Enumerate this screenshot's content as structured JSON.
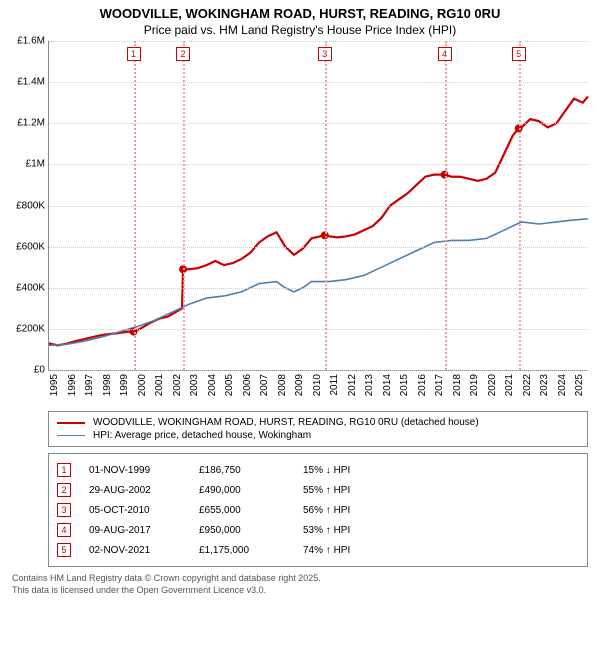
{
  "title": "WOODVILLE, WOKINGHAM ROAD, HURST, READING, RG10 0RU",
  "subtitle": "Price paid vs. HM Land Registry's House Price Index (HPI)",
  "chart": {
    "type": "line",
    "background_color": "#ffffff",
    "grid_color": "#cccccc",
    "x_min": 1995,
    "x_max": 2025.8,
    "y_min": 0,
    "y_max": 1600000,
    "y_ticks": [
      0,
      200000,
      400000,
      600000,
      800000,
      1000000,
      1200000,
      1400000,
      1600000
    ],
    "y_tick_labels": [
      "£0",
      "£200K",
      "£400K",
      "£600K",
      "£800K",
      "£1M",
      "£1.2M",
      "£1.4M",
      "£1.6M"
    ],
    "x_ticks": [
      1995,
      1996,
      1997,
      1998,
      1999,
      2000,
      2001,
      2002,
      2003,
      2004,
      2005,
      2006,
      2007,
      2008,
      2009,
      2010,
      2011,
      2012,
      2013,
      2014,
      2015,
      2016,
      2017,
      2018,
      2019,
      2020,
      2021,
      2022,
      2023,
      2024,
      2025
    ],
    "label_fontsize": 10,
    "series": [
      {
        "name": "property",
        "color": "#cc0000",
        "line_width": 2.2,
        "points": [
          [
            1995.0,
            130000
          ],
          [
            1995.5,
            120000
          ],
          [
            1996.0,
            128000
          ],
          [
            1996.5,
            140000
          ],
          [
            1997.0,
            150000
          ],
          [
            1997.5,
            160000
          ],
          [
            1998.0,
            170000
          ],
          [
            1998.5,
            175000
          ],
          [
            1999.0,
            180000
          ],
          [
            1999.5,
            186000
          ],
          [
            1999.83,
            186750
          ],
          [
            2000.2,
            200000
          ],
          [
            2000.8,
            230000
          ],
          [
            2001.3,
            250000
          ],
          [
            2001.8,
            260000
          ],
          [
            2002.2,
            280000
          ],
          [
            2002.6,
            300000
          ],
          [
            2002.66,
            490000
          ],
          [
            2003.0,
            490000
          ],
          [
            2003.5,
            495000
          ],
          [
            2004.0,
            510000
          ],
          [
            2004.5,
            530000
          ],
          [
            2005.0,
            510000
          ],
          [
            2005.5,
            520000
          ],
          [
            2006.0,
            540000
          ],
          [
            2006.5,
            570000
          ],
          [
            2007.0,
            620000
          ],
          [
            2007.5,
            650000
          ],
          [
            2008.0,
            670000
          ],
          [
            2008.5,
            600000
          ],
          [
            2009.0,
            560000
          ],
          [
            2009.5,
            590000
          ],
          [
            2010.0,
            640000
          ],
          [
            2010.5,
            650000
          ],
          [
            2010.76,
            655000
          ],
          [
            2011.0,
            650000
          ],
          [
            2011.5,
            645000
          ],
          [
            2012.0,
            650000
          ],
          [
            2012.5,
            660000
          ],
          [
            2013.0,
            680000
          ],
          [
            2013.5,
            700000
          ],
          [
            2014.0,
            740000
          ],
          [
            2014.5,
            800000
          ],
          [
            2015.0,
            830000
          ],
          [
            2015.5,
            860000
          ],
          [
            2016.0,
            900000
          ],
          [
            2016.5,
            940000
          ],
          [
            2017.0,
            950000
          ],
          [
            2017.5,
            950000
          ],
          [
            2017.6,
            950000
          ],
          [
            2018.0,
            940000
          ],
          [
            2018.5,
            940000
          ],
          [
            2019.0,
            930000
          ],
          [
            2019.5,
            920000
          ],
          [
            2020.0,
            930000
          ],
          [
            2020.5,
            960000
          ],
          [
            2021.0,
            1050000
          ],
          [
            2021.5,
            1140000
          ],
          [
            2021.84,
            1175000
          ],
          [
            2022.0,
            1180000
          ],
          [
            2022.5,
            1220000
          ],
          [
            2023.0,
            1210000
          ],
          [
            2023.5,
            1180000
          ],
          [
            2024.0,
            1200000
          ],
          [
            2024.5,
            1260000
          ],
          [
            2025.0,
            1320000
          ],
          [
            2025.5,
            1300000
          ],
          [
            2025.8,
            1330000
          ]
        ]
      },
      {
        "name": "hpi",
        "color": "#4a7fb0",
        "line_width": 1.6,
        "points": [
          [
            1995.0,
            120000
          ],
          [
            1996.0,
            125000
          ],
          [
            1997.0,
            140000
          ],
          [
            1998.0,
            160000
          ],
          [
            1999.0,
            185000
          ],
          [
            2000.0,
            210000
          ],
          [
            2001.0,
            240000
          ],
          [
            2002.0,
            280000
          ],
          [
            2003.0,
            320000
          ],
          [
            2004.0,
            350000
          ],
          [
            2005.0,
            360000
          ],
          [
            2006.0,
            380000
          ],
          [
            2007.0,
            420000
          ],
          [
            2008.0,
            430000
          ],
          [
            2008.5,
            400000
          ],
          [
            2009.0,
            380000
          ],
          [
            2009.5,
            400000
          ],
          [
            2010.0,
            430000
          ],
          [
            2011.0,
            430000
          ],
          [
            2012.0,
            440000
          ],
          [
            2013.0,
            460000
          ],
          [
            2014.0,
            500000
          ],
          [
            2015.0,
            540000
          ],
          [
            2016.0,
            580000
          ],
          [
            2017.0,
            620000
          ],
          [
            2018.0,
            630000
          ],
          [
            2019.0,
            630000
          ],
          [
            2020.0,
            640000
          ],
          [
            2021.0,
            680000
          ],
          [
            2022.0,
            720000
          ],
          [
            2023.0,
            710000
          ],
          [
            2024.0,
            720000
          ],
          [
            2025.0,
            730000
          ],
          [
            2025.8,
            735000
          ]
        ]
      }
    ],
    "sale_markers": [
      {
        "n": "1",
        "x": 1999.83,
        "y": 186750
      },
      {
        "n": "2",
        "x": 2002.66,
        "y": 490000
      },
      {
        "n": "3",
        "x": 2010.76,
        "y": 655000
      },
      {
        "n": "4",
        "x": 2017.6,
        "y": 950000
      },
      {
        "n": "5",
        "x": 2021.84,
        "y": 1175000
      }
    ],
    "marker_line_color": "#e8a0a0",
    "marker_box_border": "#cc0000"
  },
  "legend": {
    "items": [
      {
        "color": "#cc0000",
        "width": 2.2,
        "label": "WOODVILLE, WOKINGHAM ROAD, HURST, READING, RG10 0RU (detached house)"
      },
      {
        "color": "#4a7fb0",
        "width": 1.6,
        "label": "HPI: Average price, detached house, Wokingham"
      }
    ]
  },
  "transactions": [
    {
      "n": "1",
      "date": "01-NOV-1999",
      "price": "£186,750",
      "pct": "15% ↓ HPI"
    },
    {
      "n": "2",
      "date": "29-AUG-2002",
      "price": "£490,000",
      "pct": "55% ↑ HPI"
    },
    {
      "n": "3",
      "date": "05-OCT-2010",
      "price": "£655,000",
      "pct": "56% ↑ HPI"
    },
    {
      "n": "4",
      "date": "09-AUG-2017",
      "price": "£950,000",
      "pct": "53% ↑ HPI"
    },
    {
      "n": "5",
      "date": "02-NOV-2021",
      "price": "£1,175,000",
      "pct": "74% ↑ HPI"
    }
  ],
  "footer_line1": "Contains HM Land Registry data © Crown copyright and database right 2025.",
  "footer_line2": "This data is licensed under the Open Government Licence v3.0."
}
